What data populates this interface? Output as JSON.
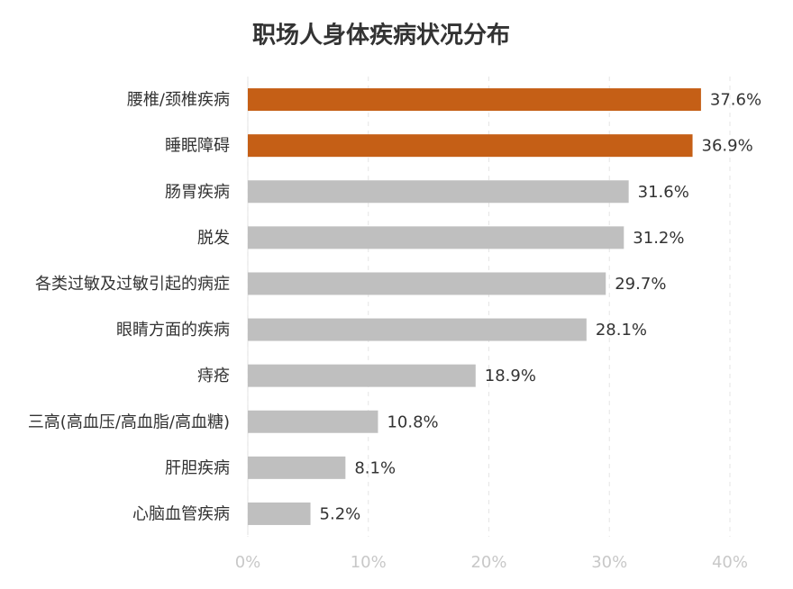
{
  "chart_data": {
    "type": "bar",
    "orientation": "horizontal",
    "title": "职场人身体疾病状况分布",
    "categories": [
      "腰椎/颈椎疾病",
      "睡眠障碍",
      "肠胃疾病",
      "脱发",
      "各类过敏及过敏引起的病症",
      "眼睛方面的疾病",
      "痔疮",
      "三高(高血压/高血脂/高血糖)",
      "肝胆疾病",
      "心脑血管疾病"
    ],
    "values": [
      37.6,
      36.9,
      31.6,
      31.2,
      29.7,
      28.1,
      18.9,
      10.8,
      8.1,
      5.2
    ],
    "value_labels": [
      "37.6%",
      "36.9%",
      "31.6%",
      "31.2%",
      "29.7%",
      "28.1%",
      "18.9%",
      "10.8%",
      "8.1%",
      "5.2%"
    ],
    "colors": [
      "#c55f16",
      "#c55f16",
      "#bfbfbf",
      "#bfbfbf",
      "#bfbfbf",
      "#bfbfbf",
      "#bfbfbf",
      "#bfbfbf",
      "#bfbfbf",
      "#bfbfbf"
    ],
    "xlim": [
      0,
      40
    ],
    "xticks": [
      {
        "value": 0,
        "label": "0%"
      },
      {
        "value": 10,
        "label": "10%"
      },
      {
        "value": 20,
        "label": "20%"
      },
      {
        "value": 30,
        "label": "30%"
      },
      {
        "value": 40,
        "label": "40%"
      }
    ],
    "grid": true
  }
}
